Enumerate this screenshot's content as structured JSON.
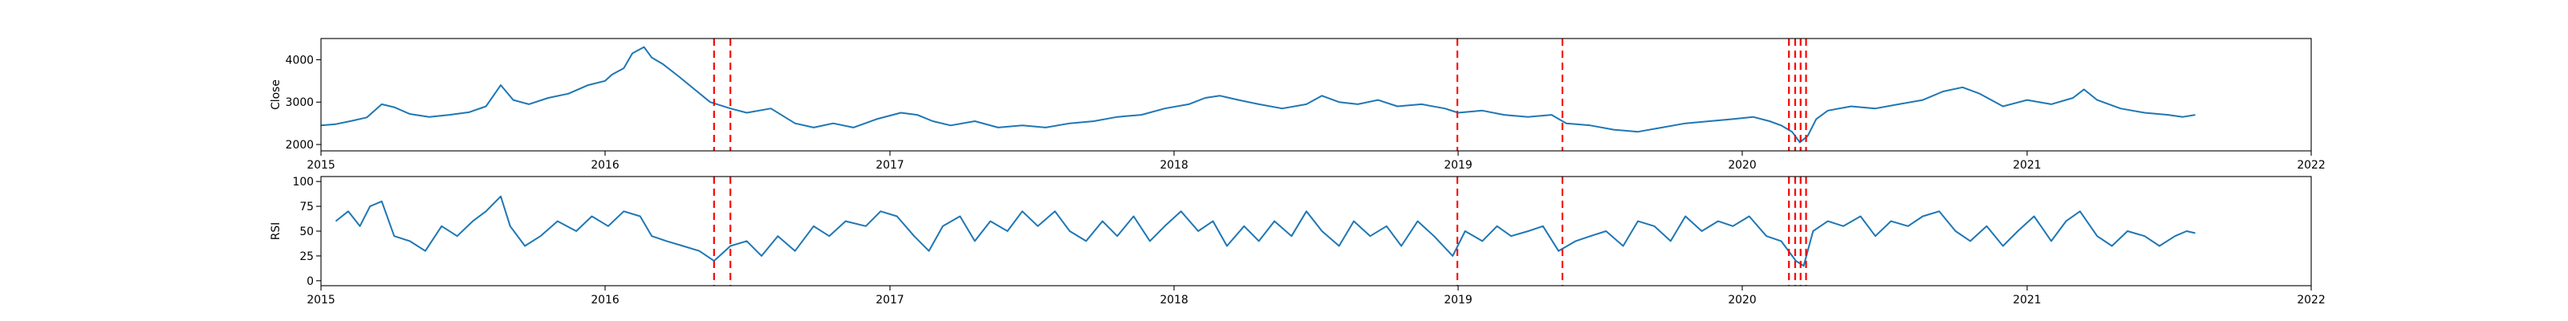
{
  "chart_data": [
    {
      "type": "line",
      "title": "",
      "xlabel": "",
      "ylabel": "Close",
      "xlim": [
        "2015-01-01",
        "2022-01-01"
      ],
      "ylim": [
        1850,
        4500
      ],
      "x_ticks": [
        "2015",
        "2016",
        "2017",
        "2018",
        "2019",
        "2020",
        "2021",
        "2022"
      ],
      "y_ticks": [
        2000,
        3000,
        4000
      ],
      "grid": false,
      "series": [
        {
          "color": "#1f77b4",
          "points": [
            [
              "2015-01-01",
              2450
            ],
            [
              "2015-01-20",
              2480
            ],
            [
              "2015-02-10",
              2560
            ],
            [
              "2015-03-01",
              2640
            ],
            [
              "2015-03-20",
              2950
            ],
            [
              "2015-04-05",
              2880
            ],
            [
              "2015-04-25",
              2720
            ],
            [
              "2015-05-20",
              2650
            ],
            [
              "2015-06-15",
              2700
            ],
            [
              "2015-07-10",
              2760
            ],
            [
              "2015-08-01",
              2900
            ],
            [
              "2015-08-20",
              3400
            ],
            [
              "2015-09-05",
              3050
            ],
            [
              "2015-09-25",
              2950
            ],
            [
              "2015-10-20",
              3100
            ],
            [
              "2015-11-15",
              3200
            ],
            [
              "2015-12-10",
              3400
            ],
            [
              "2016-01-01",
              3500
            ],
            [
              "2016-01-10",
              3650
            ],
            [
              "2016-01-25",
              3800
            ],
            [
              "2016-02-05",
              4150
            ],
            [
              "2016-02-20",
              4300
            ],
            [
              "2016-03-01",
              4050
            ],
            [
              "2016-03-15",
              3900
            ],
            [
              "2016-04-05",
              3600
            ],
            [
              "2016-04-25",
              3300
            ],
            [
              "2016-05-15",
              3000
            ],
            [
              "2016-06-10",
              2850
            ],
            [
              "2016-07-01",
              2750
            ],
            [
              "2016-08-01",
              2850
            ],
            [
              "2016-09-01",
              2500
            ],
            [
              "2016-09-25",
              2400
            ],
            [
              "2016-10-20",
              2500
            ],
            [
              "2016-11-15",
              2400
            ],
            [
              "2016-12-15",
              2600
            ],
            [
              "2017-01-15",
              2750
            ],
            [
              "2017-02-05",
              2700
            ],
            [
              "2017-02-25",
              2550
            ],
            [
              "2017-03-20",
              2450
            ],
            [
              "2017-04-20",
              2550
            ],
            [
              "2017-05-20",
              2400
            ],
            [
              "2017-06-20",
              2450
            ],
            [
              "2017-07-20",
              2400
            ],
            [
              "2017-08-20",
              2500
            ],
            [
              "2017-09-20",
              2550
            ],
            [
              "2017-10-20",
              2650
            ],
            [
              "2017-11-20",
              2700
            ],
            [
              "2017-12-20",
              2850
            ],
            [
              "2018-01-20",
              2950
            ],
            [
              "2018-02-10",
              3100
            ],
            [
              "2018-03-01",
              3150
            ],
            [
              "2018-03-25",
              3050
            ],
            [
              "2018-04-20",
              2950
            ],
            [
              "2018-05-20",
              2850
            ],
            [
              "2018-06-20",
              2950
            ],
            [
              "2018-07-10",
              3150
            ],
            [
              "2018-08-01",
              3000
            ],
            [
              "2018-08-25",
              2950
            ],
            [
              "2018-09-20",
              3050
            ],
            [
              "2018-10-15",
              2900
            ],
            [
              "2018-11-15",
              2950
            ],
            [
              "2018-12-15",
              2850
            ],
            [
              "2019-01-01",
              2750
            ],
            [
              "2019-02-01",
              2800
            ],
            [
              "2019-03-01",
              2700
            ],
            [
              "2019-04-01",
              2650
            ],
            [
              "2019-05-01",
              2700
            ],
            [
              "2019-05-20",
              2500
            ],
            [
              "2019-06-20",
              2450
            ],
            [
              "2019-07-20",
              2350
            ],
            [
              "2019-08-20",
              2300
            ],
            [
              "2019-09-20",
              2400
            ],
            [
              "2019-10-20",
              2500
            ],
            [
              "2019-11-20",
              2550
            ],
            [
              "2019-12-20",
              2600
            ],
            [
              "2020-01-15",
              2650
            ],
            [
              "2020-02-05",
              2550
            ],
            [
              "2020-02-20",
              2450
            ],
            [
              "2020-03-05",
              2300
            ],
            [
              "2020-03-15",
              2050
            ],
            [
              "2020-03-25",
              2200
            ],
            [
              "2020-04-05",
              2600
            ],
            [
              "2020-04-20",
              2800
            ],
            [
              "2020-05-20",
              2900
            ],
            [
              "2020-06-20",
              2850
            ],
            [
              "2020-07-20",
              2950
            ],
            [
              "2020-08-20",
              3050
            ],
            [
              "2020-09-15",
              3250
            ],
            [
              "2020-10-10",
              3350
            ],
            [
              "2020-11-01",
              3200
            ],
            [
              "2020-12-01",
              2900
            ],
            [
              "2021-01-01",
              3050
            ],
            [
              "2021-02-01",
              2950
            ],
            [
              "2021-03-01",
              3100
            ],
            [
              "2021-03-15",
              3300
            ],
            [
              "2021-04-01",
              3050
            ],
            [
              "2021-05-01",
              2850
            ],
            [
              "2021-06-01",
              2750
            ],
            [
              "2021-07-01",
              2700
            ],
            [
              "2021-07-20",
              2650
            ],
            [
              "2021-08-05",
              2700
            ]
          ]
        }
      ],
      "events": [
        "2016-05-20",
        "2016-06-10",
        "2018-12-31",
        "2019-05-15",
        "2020-03-01",
        "2020-03-09",
        "2020-03-16",
        "2020-03-23"
      ],
      "event_color": "#ff0000"
    },
    {
      "type": "line",
      "title": "",
      "xlabel": "",
      "ylabel": "RSI",
      "xlim": [
        "2015-01-01",
        "2022-01-01"
      ],
      "ylim": [
        -5,
        105
      ],
      "x_ticks": [
        "2015",
        "2016",
        "2017",
        "2018",
        "2019",
        "2020",
        "2021",
        "2022"
      ],
      "y_ticks": [
        0,
        25,
        50,
        75,
        100
      ],
      "grid": false,
      "series": [
        {
          "color": "#1f77b4",
          "points": [
            [
              "2015-01-20",
              60
            ],
            [
              "2015-02-05",
              70
            ],
            [
              "2015-02-20",
              55
            ],
            [
              "2015-03-05",
              75
            ],
            [
              "2015-03-20",
              80
            ],
            [
              "2015-04-05",
              45
            ],
            [
              "2015-04-25",
              40
            ],
            [
              "2015-05-15",
              30
            ],
            [
              "2015-06-05",
              55
            ],
            [
              "2015-06-25",
              45
            ],
            [
              "2015-07-15",
              60
            ],
            [
              "2015-08-01",
              70
            ],
            [
              "2015-08-20",
              85
            ],
            [
              "2015-09-01",
              55
            ],
            [
              "2015-09-20",
              35
            ],
            [
              "2015-10-10",
              45
            ],
            [
              "2015-11-01",
              60
            ],
            [
              "2015-11-25",
              50
            ],
            [
              "2015-12-15",
              65
            ],
            [
              "2016-01-05",
              55
            ],
            [
              "2016-01-25",
              70
            ],
            [
              "2016-02-15",
              65
            ],
            [
              "2016-03-01",
              45
            ],
            [
              "2016-03-20",
              40
            ],
            [
              "2016-04-10",
              35
            ],
            [
              "2016-05-01",
              30
            ],
            [
              "2016-05-20",
              20
            ],
            [
              "2016-06-10",
              35
            ],
            [
              "2016-07-01",
              40
            ],
            [
              "2016-07-20",
              25
            ],
            [
              "2016-08-10",
              45
            ],
            [
              "2016-09-01",
              30
            ],
            [
              "2016-09-25",
              55
            ],
            [
              "2016-10-15",
              45
            ],
            [
              "2016-11-05",
              60
            ],
            [
              "2016-12-01",
              55
            ],
            [
              "2016-12-20",
              70
            ],
            [
              "2017-01-10",
              65
            ],
            [
              "2017-02-01",
              45
            ],
            [
              "2017-02-20",
              30
            ],
            [
              "2017-03-10",
              55
            ],
            [
              "2017-04-01",
              65
            ],
            [
              "2017-04-20",
              40
            ],
            [
              "2017-05-10",
              60
            ],
            [
              "2017-06-01",
              50
            ],
            [
              "2017-06-20",
              70
            ],
            [
              "2017-07-10",
              55
            ],
            [
              "2017-08-01",
              70
            ],
            [
              "2017-08-20",
              50
            ],
            [
              "2017-09-10",
              40
            ],
            [
              "2017-10-01",
              60
            ],
            [
              "2017-10-20",
              45
            ],
            [
              "2017-11-10",
              65
            ],
            [
              "2017-12-01",
              40
            ],
            [
              "2017-12-20",
              55
            ],
            [
              "2018-01-10",
              70
            ],
            [
              "2018-02-01",
              50
            ],
            [
              "2018-02-20",
              60
            ],
            [
              "2018-03-10",
              35
            ],
            [
              "2018-04-01",
              55
            ],
            [
              "2018-04-20",
              40
            ],
            [
              "2018-05-10",
              60
            ],
            [
              "2018-06-01",
              45
            ],
            [
              "2018-06-20",
              70
            ],
            [
              "2018-07-10",
              50
            ],
            [
              "2018-08-01",
              35
            ],
            [
              "2018-08-20",
              60
            ],
            [
              "2018-09-10",
              45
            ],
            [
              "2018-10-01",
              55
            ],
            [
              "2018-10-20",
              35
            ],
            [
              "2018-11-10",
              60
            ],
            [
              "2018-12-01",
              45
            ],
            [
              "2018-12-25",
              25
            ],
            [
              "2019-01-10",
              50
            ],
            [
              "2019-02-01",
              40
            ],
            [
              "2019-02-20",
              55
            ],
            [
              "2019-03-10",
              45
            ],
            [
              "2019-04-01",
              50
            ],
            [
              "2019-04-20",
              55
            ],
            [
              "2019-05-10",
              30
            ],
            [
              "2019-06-01",
              40
            ],
            [
              "2019-06-20",
              45
            ],
            [
              "2019-07-10",
              50
            ],
            [
              "2019-08-01",
              35
            ],
            [
              "2019-08-20",
              60
            ],
            [
              "2019-09-10",
              55
            ],
            [
              "2019-10-01",
              40
            ],
            [
              "2019-10-20",
              65
            ],
            [
              "2019-11-10",
              50
            ],
            [
              "2019-12-01",
              60
            ],
            [
              "2019-12-20",
              55
            ],
            [
              "2020-01-10",
              65
            ],
            [
              "2020-02-01",
              45
            ],
            [
              "2020-02-20",
              40
            ],
            [
              "2020-03-10",
              20
            ],
            [
              "2020-03-20",
              15
            ],
            [
              "2020-04-01",
              50
            ],
            [
              "2020-04-20",
              60
            ],
            [
              "2020-05-10",
              55
            ],
            [
              "2020-06-01",
              65
            ],
            [
              "2020-06-20",
              45
            ],
            [
              "2020-07-10",
              60
            ],
            [
              "2020-08-01",
              55
            ],
            [
              "2020-08-20",
              65
            ],
            [
              "2020-09-10",
              70
            ],
            [
              "2020-10-01",
              50
            ],
            [
              "2020-10-20",
              40
            ],
            [
              "2020-11-10",
              55
            ],
            [
              "2020-12-01",
              35
            ],
            [
              "2020-12-20",
              50
            ],
            [
              "2021-01-10",
              65
            ],
            [
              "2021-02-01",
              40
            ],
            [
              "2021-02-20",
              60
            ],
            [
              "2021-03-10",
              70
            ],
            [
              "2021-04-01",
              45
            ],
            [
              "2021-04-20",
              35
            ],
            [
              "2021-05-10",
              50
            ],
            [
              "2021-06-01",
              45
            ],
            [
              "2021-06-20",
              35
            ],
            [
              "2021-07-10",
              45
            ],
            [
              "2021-07-25",
              50
            ],
            [
              "2021-08-05",
              48
            ]
          ]
        }
      ],
      "events": [
        "2016-05-20",
        "2016-06-10",
        "2018-12-31",
        "2019-05-15",
        "2020-03-01",
        "2020-03-09",
        "2020-03-16",
        "2020-03-23"
      ],
      "event_color": "#ff0000"
    }
  ]
}
